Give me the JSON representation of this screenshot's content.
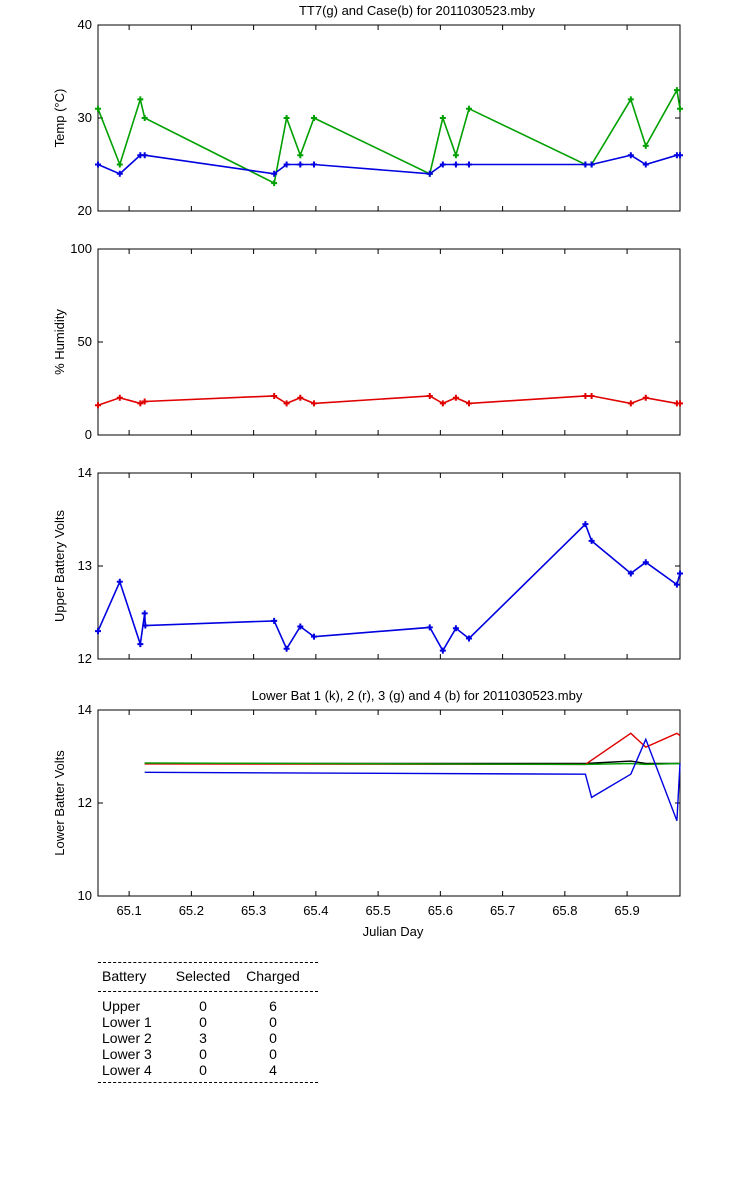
{
  "colors": {
    "green": "#00a000",
    "blue": "#0000e0",
    "red": "#e00000",
    "black": "#000000"
  },
  "chart_data": [
    {
      "type": "line",
      "title": "TT7(g) and Case(b) for 2011030523.mby",
      "xlabel": "",
      "ylabel": "Temp  (°C)",
      "xlim": [
        65.05,
        65.985
      ],
      "ylim": [
        20,
        40
      ],
      "yticks": [
        20,
        30,
        40
      ],
      "grid": false,
      "series": [
        {
          "name": "TT7",
          "color": "green",
          "markers": true,
          "x": [
            65.05,
            65.085,
            65.118,
            65.125,
            65.333,
            65.353,
            65.375,
            65.397,
            65.583,
            65.604,
            65.625,
            65.646,
            65.833,
            65.843,
            65.906,
            65.93,
            65.98,
            65.985
          ],
          "y": [
            31,
            25,
            32,
            30,
            23,
            30,
            26,
            30,
            24,
            30,
            26,
            31,
            25,
            25,
            32,
            27,
            33,
            31
          ]
        },
        {
          "name": "Case",
          "color": "blue",
          "markers": true,
          "x": [
            65.05,
            65.085,
            65.118,
            65.125,
            65.333,
            65.353,
            65.375,
            65.397,
            65.583,
            65.604,
            65.625,
            65.646,
            65.833,
            65.843,
            65.906,
            65.93,
            65.98,
            65.985
          ],
          "y": [
            25,
            24,
            26,
            26,
            24,
            25,
            25,
            25,
            24,
            25,
            25,
            25,
            25,
            25,
            26,
            25,
            26,
            26
          ]
        }
      ]
    },
    {
      "type": "line",
      "title": "",
      "xlabel": "",
      "ylabel": "% Humidity",
      "xlim": [
        65.05,
        65.985
      ],
      "ylim": [
        0,
        100
      ],
      "yticks": [
        0,
        50,
        100
      ],
      "grid": false,
      "series": [
        {
          "name": "",
          "color": "red",
          "markers": true,
          "x": [
            65.05,
            65.085,
            65.118,
            65.125,
            65.333,
            65.353,
            65.375,
            65.397,
            65.583,
            65.604,
            65.625,
            65.646,
            65.833,
            65.843,
            65.906,
            65.93,
            65.98,
            65.985
          ],
          "y": [
            16,
            20,
            17,
            18,
            21,
            17,
            20,
            17,
            21,
            17,
            20,
            17,
            21,
            21,
            17,
            20,
            17,
            17
          ]
        }
      ]
    },
    {
      "type": "line",
      "title": "",
      "xlabel": "",
      "ylabel": "Upper Battery Volts",
      "xlim": [
        65.05,
        65.985
      ],
      "ylim": [
        12,
        14
      ],
      "yticks": [
        12,
        13,
        14
      ],
      "grid": false,
      "series": [
        {
          "name": "",
          "color": "blue",
          "markers": true,
          "x": [
            65.05,
            65.085,
            65.118,
            65.125,
            65.126,
            65.333,
            65.353,
            65.375,
            65.397,
            65.583,
            65.604,
            65.625,
            65.646,
            65.833,
            65.843,
            65.906,
            65.93,
            65.98,
            65.985
          ],
          "y": [
            12.3,
            12.83,
            12.16,
            12.49,
            12.36,
            12.41,
            12.11,
            12.35,
            12.24,
            12.34,
            12.09,
            12.33,
            12.22,
            13.45,
            13.27,
            12.92,
            13.04,
            12.8,
            12.92
          ]
        }
      ]
    },
    {
      "type": "line",
      "title": "Lower Bat 1 (k), 2 (r), 3 (g) and 4 (b) for 2011030523.mby",
      "xlabel": "Julian Day",
      "ylabel": "Lower Batter Volts",
      "xlim": [
        65.05,
        65.985
      ],
      "ylim": [
        10,
        14
      ],
      "yticks": [
        10,
        12,
        14
      ],
      "xticks": [
        "65.1",
        "65.2",
        "65.3",
        "65.4",
        "65.5",
        "65.6",
        "65.7",
        "65.8",
        "65.9"
      ],
      "xtick_values": [
        65.1,
        65.2,
        65.3,
        65.4,
        65.5,
        65.6,
        65.7,
        65.8,
        65.9
      ],
      "grid": false,
      "series": [
        {
          "name": "1",
          "color": "black",
          "markers": false,
          "x": [
            65.125,
            65.833,
            65.906,
            65.93,
            65.985
          ],
          "y": [
            12.85,
            12.85,
            12.9,
            12.85,
            12.85
          ]
        },
        {
          "name": "2",
          "color": "red",
          "markers": false,
          "x": [
            65.125,
            65.833,
            65.906,
            65.93,
            65.98,
            65.985
          ],
          "y": [
            12.84,
            12.83,
            13.5,
            13.2,
            13.5,
            13.45
          ]
        },
        {
          "name": "3",
          "color": "green",
          "markers": false,
          "x": [
            65.125,
            65.833,
            65.906,
            65.93,
            65.985
          ],
          "y": [
            12.86,
            12.83,
            12.85,
            12.83,
            12.85
          ]
        },
        {
          "name": "4",
          "color": "blue",
          "markers": false,
          "x": [
            65.125,
            65.833,
            65.843,
            65.906,
            65.93,
            65.98,
            65.985
          ],
          "y": [
            12.66,
            12.62,
            12.12,
            12.62,
            13.37,
            11.62,
            12.85
          ]
        }
      ]
    }
  ],
  "battery_table": {
    "headers": [
      "Battery",
      "Selected",
      "Charged"
    ],
    "rows": [
      [
        "Upper",
        "0",
        "6"
      ],
      [
        "Lower 1",
        "0",
        "0"
      ],
      [
        "Lower 2",
        "3",
        "0"
      ],
      [
        "Lower 3",
        "0",
        "0"
      ],
      [
        "Lower 4",
        "0",
        "4"
      ]
    ]
  }
}
